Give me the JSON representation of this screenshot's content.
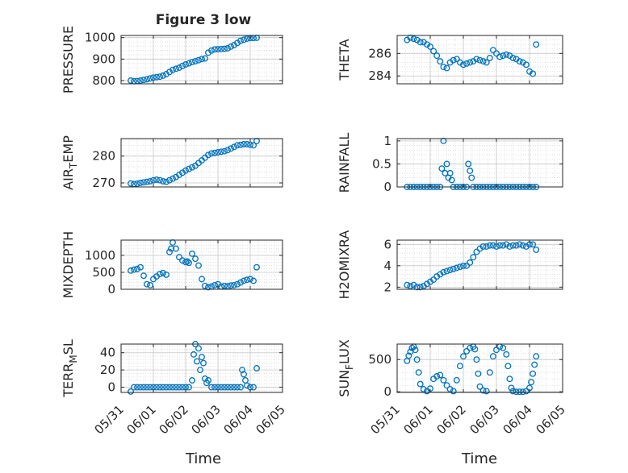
{
  "figure": {
    "title": "Figure 3 low",
    "xlabel": "Time",
    "x_ticks": [
      "05/31",
      "06/01",
      "06/02",
      "06/03",
      "06/04",
      "06/05"
    ]
  },
  "colors": {
    "marker": "#0072BD",
    "grid": "#d9d9d9",
    "axis": "#262626"
  },
  "chart_data": [
    {
      "type": "scatter",
      "ylabel": "PRESSURE",
      "ylim": [
        785,
        1010
      ],
      "yticks": [
        800,
        900,
        1000
      ],
      "x": [
        0.3,
        0.4,
        0.5,
        0.6,
        0.7,
        0.8,
        0.9,
        1.0,
        1.1,
        1.2,
        1.3,
        1.4,
        1.5,
        1.6,
        1.7,
        1.8,
        1.9,
        2.0,
        2.1,
        2.2,
        2.3,
        2.4,
        2.5,
        2.6,
        2.7,
        2.8,
        2.9,
        3.0,
        3.1,
        3.2,
        3.3,
        3.4,
        3.5,
        3.6,
        3.7,
        3.8,
        3.9,
        4.0,
        4.1,
        4.2
      ],
      "y": [
        800,
        797,
        798,
        800,
        803,
        806,
        810,
        814,
        816,
        818,
        823,
        830,
        840,
        850,
        855,
        860,
        868,
        875,
        880,
        886,
        890,
        895,
        900,
        903,
        930,
        940,
        945,
        946,
        947,
        948,
        950,
        958,
        965,
        975,
        985,
        990,
        995,
        998,
        998,
        999
      ]
    },
    {
      "type": "scatter",
      "ylabel": "THETA",
      "ylim": [
        283.3,
        287.6
      ],
      "yticks": [
        284,
        286
      ],
      "x": [
        0.3,
        0.4,
        0.5,
        0.6,
        0.7,
        0.8,
        0.9,
        1.0,
        1.1,
        1.2,
        1.3,
        1.4,
        1.5,
        1.6,
        1.7,
        1.8,
        1.9,
        2.0,
        2.1,
        2.2,
        2.3,
        2.4,
        2.5,
        2.6,
        2.7,
        2.8,
        2.9,
        3.0,
        3.1,
        3.2,
        3.3,
        3.4,
        3.5,
        3.6,
        3.7,
        3.8,
        3.9,
        4.0,
        4.1,
        4.2
      ],
      "y": [
        287.2,
        287.4,
        287.3,
        287.2,
        287.0,
        287.0,
        286.8,
        286.6,
        286.2,
        285.8,
        285.3,
        284.8,
        284.7,
        285.2,
        285.4,
        285.5,
        285.2,
        285.0,
        285.1,
        285.2,
        285.3,
        285.5,
        285.4,
        285.3,
        285.2,
        285.6,
        286.3,
        286.0,
        285.7,
        285.8,
        285.9,
        285.8,
        285.6,
        285.5,
        285.3,
        285.2,
        285.0,
        284.4,
        284.2,
        286.8
      ]
    },
    {
      "type": "scatter",
      "ylabel": "AIR_TEMP",
      "ylim": [
        268.5,
        286.5
      ],
      "yticks": [
        270,
        280
      ],
      "x": [
        0.3,
        0.4,
        0.5,
        0.6,
        0.7,
        0.8,
        0.9,
        1.0,
        1.1,
        1.2,
        1.3,
        1.4,
        1.5,
        1.6,
        1.7,
        1.8,
        1.9,
        2.0,
        2.1,
        2.2,
        2.3,
        2.4,
        2.5,
        2.6,
        2.7,
        2.8,
        2.9,
        3.0,
        3.1,
        3.2,
        3.3,
        3.4,
        3.5,
        3.6,
        3.7,
        3.8,
        3.9,
        4.0,
        4.1,
        4.2
      ],
      "y": [
        269.8,
        269.6,
        269.7,
        270.0,
        270.2,
        270.4,
        270.6,
        271.0,
        271.2,
        271.0,
        270.6,
        270.4,
        271.0,
        271.6,
        272.2,
        273.0,
        273.8,
        274.6,
        275.2,
        275.8,
        276.4,
        277.4,
        278.4,
        279.4,
        280.4,
        281.0,
        281.2,
        281.4,
        281.6,
        281.8,
        282.2,
        282.8,
        283.4,
        284.0,
        284.2,
        284.4,
        284.4,
        284.2,
        284.0,
        285.6
      ]
    },
    {
      "type": "scatter",
      "ylabel": "RAINFALL",
      "ylim": [
        0,
        1.05
      ],
      "yticks": [
        0,
        0.5,
        1
      ],
      "x": [
        0.3,
        0.4,
        0.5,
        0.6,
        0.7,
        0.8,
        0.9,
        1.0,
        1.1,
        1.2,
        1.3,
        1.35,
        1.4,
        1.45,
        1.5,
        1.55,
        1.6,
        1.65,
        1.7,
        1.8,
        1.9,
        2.0,
        2.1,
        2.15,
        2.2,
        2.25,
        2.3,
        2.4,
        2.5,
        2.6,
        2.7,
        2.8,
        2.9,
        3.0,
        3.1,
        3.2,
        3.3,
        3.4,
        3.5,
        3.6,
        3.7,
        3.8,
        3.9,
        4.0,
        4.1,
        4.2
      ],
      "y": [
        0,
        0,
        0,
        0,
        0,
        0,
        0,
        0,
        0,
        0,
        0,
        0.4,
        1.0,
        0.3,
        0.5,
        0.2,
        0.3,
        0.15,
        0,
        0,
        0,
        0,
        0,
        0.5,
        0.35,
        0.2,
        0,
        0,
        0,
        0,
        0,
        0,
        0,
        0,
        0,
        0,
        0,
        0,
        0,
        0,
        0,
        0,
        0,
        0,
        0,
        0
      ]
    },
    {
      "type": "scatter",
      "ylabel": "MIXDEPTH",
      "ylim": [
        0,
        1450
      ],
      "yticks": [
        0,
        500,
        1000
      ],
      "x": [
        0.3,
        0.4,
        0.5,
        0.6,
        0.7,
        0.8,
        0.9,
        1.0,
        1.1,
        1.2,
        1.3,
        1.4,
        1.5,
        1.55,
        1.6,
        1.7,
        1.8,
        1.9,
        2.0,
        2.05,
        2.1,
        2.2,
        2.3,
        2.4,
        2.5,
        2.6,
        2.7,
        2.8,
        2.9,
        3.0,
        3.1,
        3.2,
        3.3,
        3.4,
        3.5,
        3.6,
        3.7,
        3.8,
        3.9,
        4.0,
        4.1,
        4.2
      ],
      "y": [
        550,
        580,
        600,
        650,
        400,
        150,
        120,
        300,
        380,
        450,
        480,
        430,
        1100,
        1200,
        1380,
        1200,
        950,
        850,
        800,
        820,
        780,
        1050,
        900,
        700,
        300,
        100,
        60,
        80,
        120,
        150,
        80,
        100,
        90,
        110,
        120,
        150,
        200,
        250,
        280,
        300,
        250,
        650
      ]
    },
    {
      "type": "scatter",
      "ylabel": "H2OMIXRA",
      "ylim": [
        1.8,
        6.4
      ],
      "yticks": [
        2,
        4,
        6
      ],
      "x": [
        0.3,
        0.4,
        0.5,
        0.6,
        0.7,
        0.8,
        0.9,
        1.0,
        1.1,
        1.2,
        1.3,
        1.4,
        1.5,
        1.6,
        1.7,
        1.8,
        1.9,
        2.0,
        2.1,
        2.2,
        2.3,
        2.4,
        2.5,
        2.6,
        2.7,
        2.8,
        2.9,
        3.0,
        3.1,
        3.2,
        3.3,
        3.4,
        3.5,
        3.6,
        3.7,
        3.8,
        3.9,
        4.0,
        4.1,
        4.2
      ],
      "y": [
        2.2,
        2.1,
        2.2,
        2.0,
        2.0,
        2.1,
        2.3,
        2.5,
        2.7,
        3.0,
        3.2,
        3.4,
        3.5,
        3.6,
        3.7,
        3.8,
        3.9,
        4.0,
        4.0,
        4.3,
        4.8,
        5.3,
        5.6,
        5.8,
        5.8,
        5.9,
        5.9,
        5.8,
        5.9,
        5.9,
        6.0,
        5.8,
        5.9,
        5.9,
        6.0,
        5.9,
        5.8,
        6.0,
        6.0,
        5.5
      ]
    },
    {
      "type": "scatter",
      "ylabel": "TERR_MSL",
      "ylim": [
        -6,
        50
      ],
      "yticks": [
        0,
        20,
        40
      ],
      "x": [
        0.3,
        0.4,
        0.5,
        0.6,
        0.7,
        0.8,
        0.9,
        1.0,
        1.1,
        1.2,
        1.3,
        1.4,
        1.5,
        1.6,
        1.7,
        1.8,
        1.9,
        2.0,
        2.1,
        2.2,
        2.25,
        2.3,
        2.35,
        2.4,
        2.45,
        2.5,
        2.55,
        2.6,
        2.65,
        2.7,
        2.8,
        2.9,
        3.0,
        3.1,
        3.2,
        3.3,
        3.4,
        3.5,
        3.6,
        3.7,
        3.75,
        3.8,
        3.85,
        3.9,
        4.0,
        4.1,
        4.2
      ],
      "y": [
        -5,
        0,
        0,
        0,
        0,
        0,
        0,
        0,
        0,
        0,
        0,
        0,
        0,
        0,
        0,
        0,
        0,
        0,
        0,
        8,
        38,
        50,
        30,
        45,
        20,
        35,
        28,
        10,
        5,
        8,
        0,
        0,
        0,
        0,
        0,
        0,
        0,
        0,
        0,
        0,
        20,
        15,
        8,
        2,
        0,
        0,
        22
      ]
    },
    {
      "type": "scatter",
      "ylabel": "SUN_FLUX",
      "ylim": [
        -10,
        740
      ],
      "yticks": [
        0,
        500
      ],
      "x": [
        0.3,
        0.35,
        0.4,
        0.45,
        0.5,
        0.55,
        0.6,
        0.65,
        0.7,
        0.8,
        0.9,
        1.0,
        1.1,
        1.2,
        1.3,
        1.4,
        1.5,
        1.6,
        1.7,
        1.8,
        1.9,
        2.0,
        2.1,
        2.2,
        2.3,
        2.35,
        2.4,
        2.45,
        2.5,
        2.6,
        2.7,
        2.8,
        2.9,
        3.0,
        3.1,
        3.2,
        3.3,
        3.35,
        3.4,
        3.45,
        3.5,
        3.6,
        3.7,
        3.8,
        3.9,
        4.0,
        4.05,
        4.1,
        4.15,
        4.2
      ],
      "y": [
        480,
        560,
        620,
        680,
        700,
        650,
        500,
        300,
        120,
        40,
        10,
        50,
        200,
        240,
        260,
        180,
        100,
        40,
        10,
        180,
        400,
        550,
        630,
        680,
        700,
        660,
        500,
        280,
        80,
        20,
        10,
        300,
        550,
        650,
        700,
        680,
        580,
        400,
        200,
        60,
        10,
        0,
        0,
        0,
        10,
        60,
        150,
        280,
        420,
        550
      ]
    }
  ]
}
